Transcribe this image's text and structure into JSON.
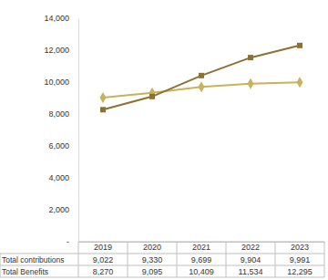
{
  "chart_data": {
    "type": "line",
    "categories": [
      "2019",
      "2020",
      "2021",
      "2022",
      "2023"
    ],
    "series": [
      {
        "name": "Total contributions",
        "color": "#c8b25a",
        "marker": "diamond",
        "line_style": "solid",
        "values": [
          9022,
          9330,
          9699,
          9904,
          9991
        ],
        "value_labels": [
          "9,022",
          "9,330",
          "9,699",
          "9,904",
          "9,991"
        ]
      },
      {
        "name": "Total Benefits",
        "color": "#8c7132",
        "marker": "square",
        "line_style": "solid",
        "values": [
          8270,
          9095,
          10409,
          11534,
          12295
        ],
        "value_labels": [
          "8,270",
          "9,095",
          "10,409",
          "11,534",
          "12,295"
        ]
      }
    ],
    "ylim": [
      0,
      14000
    ],
    "yticks": [
      {
        "value": 0,
        "label": "-"
      },
      {
        "value": 2000,
        "label": "2,000"
      },
      {
        "value": 4000,
        "label": "4,000"
      },
      {
        "value": 6000,
        "label": "6,000"
      },
      {
        "value": 8000,
        "label": "8,000"
      },
      {
        "value": 10000,
        "label": "10,000"
      },
      {
        "value": 12000,
        "label": "12,000"
      },
      {
        "value": 14000,
        "label": "14,000"
      }
    ],
    "grid": false
  }
}
